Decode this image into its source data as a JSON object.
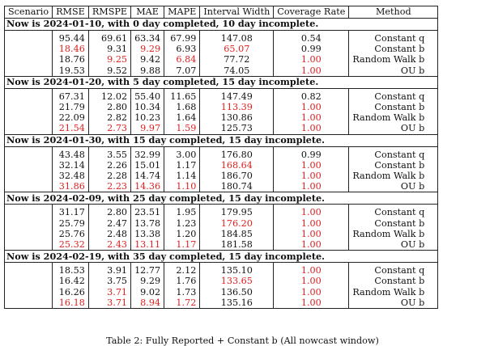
{
  "table": {
    "columns": [
      "Scenario",
      "RMSE",
      "RMSPE",
      "MAE",
      "MAPE",
      "Interval Width",
      "Coverage Rate",
      "Method"
    ],
    "sections": [
      {
        "heading": "Now is 2024-01-10, with 0 day completed, 10 day incomplete.",
        "rows": [
          {
            "rmse": "95.44",
            "rmspe": "69.61",
            "mae": "63.34",
            "mape": "67.99",
            "width": "147.08",
            "coverage": "0.54",
            "method": "Constant q",
            "red": []
          },
          {
            "rmse": "18.46",
            "rmspe": "9.31",
            "mae": "9.29",
            "mape": "6.93",
            "width": "65.07",
            "coverage": "0.99",
            "method": "Constant b",
            "red": [
              "rmse",
              "mae",
              "width"
            ]
          },
          {
            "rmse": "18.76",
            "rmspe": "9.25",
            "mae": "9.42",
            "mape": "6.84",
            "width": "77.72",
            "coverage": "1.00",
            "method": "Random Walk b",
            "red": [
              "rmspe",
              "mape",
              "coverage"
            ]
          },
          {
            "rmse": "19.53",
            "rmspe": "9.52",
            "mae": "9.88",
            "mape": "7.07",
            "width": "74.05",
            "coverage": "1.00",
            "method": "OU b",
            "red": [
              "coverage"
            ]
          }
        ]
      },
      {
        "heading": "Now is 2024-01-20, with 5 day completed, 15 day incomplete.",
        "rows": [
          {
            "rmse": "67.31",
            "rmspe": "12.02",
            "mae": "55.40",
            "mape": "11.65",
            "width": "147.49",
            "coverage": "0.82",
            "method": "Constant q",
            "red": []
          },
          {
            "rmse": "21.79",
            "rmspe": "2.80",
            "mae": "10.34",
            "mape": "1.68",
            "width": "113.39",
            "coverage": "1.00",
            "method": "Constant b",
            "red": [
              "width",
              "coverage"
            ]
          },
          {
            "rmse": "22.09",
            "rmspe": "2.82",
            "mae": "10.23",
            "mape": "1.64",
            "width": "130.86",
            "coverage": "1.00",
            "method": "Random Walk b",
            "red": [
              "coverage"
            ]
          },
          {
            "rmse": "21.54",
            "rmspe": "2.73",
            "mae": "9.97",
            "mape": "1.59",
            "width": "125.73",
            "coverage": "1.00",
            "method": "OU b",
            "red": [
              "rmse",
              "rmspe",
              "mae",
              "mape",
              "coverage"
            ]
          }
        ]
      },
      {
        "heading": "Now is 2024-01-30, with 15 day completed, 15 day incomplete.",
        "rows": [
          {
            "rmse": "43.48",
            "rmspe": "3.55",
            "mae": "32.99",
            "mape": "3.00",
            "width": "176.80",
            "coverage": "0.99",
            "method": "Constant q",
            "red": []
          },
          {
            "rmse": "32.14",
            "rmspe": "2.26",
            "mae": "15.01",
            "mape": "1.17",
            "width": "168.64",
            "coverage": "1.00",
            "method": "Constant b",
            "red": [
              "width",
              "coverage"
            ]
          },
          {
            "rmse": "32.48",
            "rmspe": "2.28",
            "mae": "14.74",
            "mape": "1.14",
            "width": "186.70",
            "coverage": "1.00",
            "method": "Random Walk b",
            "red": [
              "coverage"
            ]
          },
          {
            "rmse": "31.86",
            "rmspe": "2.23",
            "mae": "14.36",
            "mape": "1.10",
            "width": "180.74",
            "coverage": "1.00",
            "method": "OU b",
            "red": [
              "rmse",
              "rmspe",
              "mae",
              "mape",
              "coverage"
            ]
          }
        ]
      },
      {
        "heading": "Now is 2024-02-09, with 25 day completed, 15 day incomplete.",
        "rows": [
          {
            "rmse": "31.17",
            "rmspe": "2.80",
            "mae": "23.51",
            "mape": "1.95",
            "width": "179.95",
            "coverage": "1.00",
            "method": "Constant q",
            "red": [
              "coverage"
            ]
          },
          {
            "rmse": "25.79",
            "rmspe": "2.47",
            "mae": "13.78",
            "mape": "1.23",
            "width": "176.20",
            "coverage": "1.00",
            "method": "Constant b",
            "red": [
              "width",
              "coverage"
            ]
          },
          {
            "rmse": "25.76",
            "rmspe": "2.48",
            "mae": "13.38",
            "mape": "1.20",
            "width": "184.85",
            "coverage": "1.00",
            "method": "Random Walk b",
            "red": [
              "coverage"
            ]
          },
          {
            "rmse": "25.32",
            "rmspe": "2.43",
            "mae": "13.11",
            "mape": "1.17",
            "width": "181.58",
            "coverage": "1.00",
            "method": "OU b",
            "red": [
              "rmse",
              "rmspe",
              "mae",
              "mape",
              "coverage"
            ]
          }
        ]
      },
      {
        "heading": "Now is 2024-02-19, with 35 day completed, 15 day incomplete.",
        "rows": [
          {
            "rmse": "18.53",
            "rmspe": "3.91",
            "mae": "12.77",
            "mape": "2.12",
            "width": "135.10",
            "coverage": "1.00",
            "method": "Constant q",
            "red": [
              "coverage"
            ]
          },
          {
            "rmse": "16.42",
            "rmspe": "3.75",
            "mae": "9.29",
            "mape": "1.76",
            "width": "133.65",
            "coverage": "1.00",
            "method": "Constant b",
            "red": [
              "width",
              "coverage"
            ]
          },
          {
            "rmse": "16.26",
            "rmspe": "3.71",
            "mae": "9.02",
            "mape": "1.73",
            "width": "136.50",
            "coverage": "1.00",
            "method": "Random Walk b",
            "red": [
              "rmspe",
              "coverage"
            ]
          },
          {
            "rmse": "16.18",
            "rmspe": "3.71",
            "mae": "8.94",
            "mape": "1.72",
            "width": "135.16",
            "coverage": "1.00",
            "method": "OU b",
            "red": [
              "rmse",
              "rmspe",
              "mae",
              "mape",
              "coverage"
            ]
          }
        ]
      }
    ]
  },
  "caption": "Table 2: Fully Reported + Constant b (All nowcast window)",
  "colors": {
    "highlight": "#e02020",
    "text": "#111111",
    "rule": "#222222"
  }
}
